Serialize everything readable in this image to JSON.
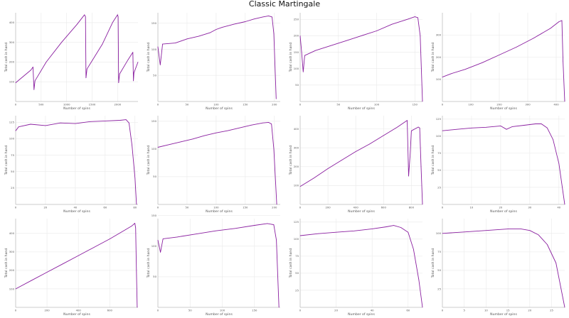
{
  "title": "Classic Martingale",
  "colors": {
    "line": "#8a1fa0",
    "grid": "#e9e9e9",
    "axis": "#bbbbbb",
    "text": "#555555"
  },
  "chart_data": [
    {
      "type": "line",
      "xlabel": "Number of spins",
      "ylabel": "Total cash in hand",
      "xlim": [
        0,
        2400
      ],
      "ylim": [
        0,
        450
      ],
      "xticks": [
        0,
        500,
        1000,
        1500,
        2000
      ],
      "yticks": [
        100,
        200,
        300,
        400
      ],
      "grid": true,
      "series": [
        {
          "values": [
            [
              0,
              95
            ],
            [
              300,
              160
            ],
            [
              340,
              175
            ],
            [
              360,
              60
            ],
            [
              380,
              105
            ],
            [
              600,
              200
            ],
            [
              900,
              300
            ],
            [
              1200,
              390
            ],
            [
              1350,
              440
            ],
            [
              1370,
              430
            ],
            [
              1380,
              120
            ],
            [
              1400,
              165
            ],
            [
              1700,
              290
            ],
            [
              1900,
              400
            ],
            [
              2000,
              440
            ],
            [
              2010,
              430
            ],
            [
              2020,
              95
            ],
            [
              2040,
              140
            ],
            [
              2200,
              210
            ],
            [
              2300,
              250
            ],
            [
              2310,
              105
            ],
            [
              2320,
              145
            ],
            [
              2400,
              200
            ]
          ]
        }
      ]
    },
    {
      "type": "line",
      "xlabel": "Number of spins",
      "ylabel": "Total cash in hand",
      "xlim": [
        0,
        210
      ],
      "ylim": [
        0,
        170
      ],
      "xticks": [
        0,
        50,
        100,
        150,
        200
      ],
      "yticks": [
        50,
        100,
        150
      ],
      "grid": true,
      "series": [
        {
          "values": [
            [
              0,
              105
            ],
            [
              4,
              70
            ],
            [
              8,
              110
            ],
            [
              30,
              112
            ],
            [
              50,
              120
            ],
            [
              70,
              125
            ],
            [
              90,
              132
            ],
            [
              100,
              138
            ],
            [
              110,
              142
            ],
            [
              130,
              148
            ],
            [
              150,
              153
            ],
            [
              165,
              158
            ],
            [
              180,
              162
            ],
            [
              190,
              164
            ],
            [
              196,
              162
            ],
            [
              199,
              130
            ],
            [
              203,
              5
            ]
          ]
        }
      ]
    },
    {
      "type": "line",
      "xlabel": "Number of spins",
      "ylabel": "Total cash in hand",
      "xlim": [
        0,
        160
      ],
      "ylim": [
        0,
        270
      ],
      "xticks": [
        0,
        50,
        100,
        150
      ],
      "yticks": [
        50,
        100,
        150,
        200,
        250
      ],
      "grid": true,
      "series": [
        {
          "values": [
            [
              0,
              200
            ],
            [
              2,
              150
            ],
            [
              4,
              90
            ],
            [
              6,
              140
            ],
            [
              20,
              155
            ],
            [
              40,
              170
            ],
            [
              60,
              185
            ],
            [
              80,
              200
            ],
            [
              100,
              215
            ],
            [
              120,
              235
            ],
            [
              140,
              250
            ],
            [
              150,
              258
            ],
            [
              154,
              255
            ],
            [
              157,
              200
            ],
            [
              160,
              0
            ]
          ]
        }
      ]
    },
    {
      "type": "line",
      "xlabel": "Number of spins",
      "ylabel": "Total cash in hand",
      "xlim": [
        0,
        430
      ],
      "ylim": [
        0,
        400
      ],
      "xticks": [
        0,
        100,
        200,
        300,
        400
      ],
      "yticks": [
        100,
        200,
        300
      ],
      "grid": true,
      "series": [
        {
          "values": [
            [
              0,
              110
            ],
            [
              30,
              125
            ],
            [
              80,
              145
            ],
            [
              140,
              175
            ],
            [
              200,
              210
            ],
            [
              260,
              245
            ],
            [
              320,
              285
            ],
            [
              380,
              330
            ],
            [
              410,
              360
            ],
            [
              420,
              365
            ],
            [
              424,
              180
            ],
            [
              430,
              0
            ]
          ]
        }
      ]
    },
    {
      "type": "line",
      "xlabel": "Number of spins",
      "ylabel": "Total cash in hand",
      "xlim": [
        0,
        82
      ],
      "ylim": [
        0,
        135
      ],
      "xticks": [
        0,
        20,
        40,
        60,
        80
      ],
      "yticks": [
        25,
        50,
        75,
        100,
        125
      ],
      "grid": true,
      "series": [
        {
          "values": [
            [
              0,
              112
            ],
            [
              2,
              118
            ],
            [
              10,
              122
            ],
            [
              20,
              120
            ],
            [
              30,
              124
            ],
            [
              40,
              123
            ],
            [
              50,
              126
            ],
            [
              60,
              127
            ],
            [
              70,
              128
            ],
            [
              74,
              129
            ],
            [
              76,
              124
            ],
            [
              78,
              90
            ],
            [
              80,
              40
            ],
            [
              81,
              0
            ]
          ]
        }
      ]
    },
    {
      "type": "line",
      "xlabel": "Number of spins",
      "ylabel": "Total cash in hand",
      "xlim": [
        0,
        210
      ],
      "ylim": [
        0,
        160
      ],
      "xticks": [
        0,
        50,
        100,
        150,
        200
      ],
      "yticks": [
        50,
        100,
        150
      ],
      "grid": true,
      "series": [
        {
          "values": [
            [
              0,
              103
            ],
            [
              20,
              108
            ],
            [
              40,
              113
            ],
            [
              60,
              118
            ],
            [
              80,
              124
            ],
            [
              100,
              129
            ],
            [
              120,
              133
            ],
            [
              140,
              138
            ],
            [
              160,
              143
            ],
            [
              180,
              147
            ],
            [
              190,
              148
            ],
            [
              195,
              145
            ],
            [
              199,
              100
            ],
            [
              204,
              0
            ]
          ]
        }
      ]
    },
    {
      "type": "line",
      "xlabel": "Number of spins",
      "ylabel": "Total cash in hand",
      "xlim": [
        0,
        880
      ],
      "ylim": [
        0,
        470
      ],
      "xticks": [
        0,
        200,
        400,
        600,
        800
      ],
      "yticks": [
        100,
        200,
        300,
        400
      ],
      "grid": true,
      "series": [
        {
          "values": [
            [
              0,
              95
            ],
            [
              100,
              140
            ],
            [
              200,
              190
            ],
            [
              300,
              235
            ],
            [
              400,
              280
            ],
            [
              500,
              320
            ],
            [
              600,
              365
            ],
            [
              700,
              410
            ],
            [
              770,
              445
            ],
            [
              780,
              150
            ],
            [
              790,
              250
            ],
            [
              800,
              390
            ],
            [
              850,
              410
            ],
            [
              860,
              405
            ],
            [
              870,
              200
            ],
            [
              880,
              0
            ]
          ]
        }
      ]
    },
    {
      "type": "line",
      "xlabel": "Number of spins",
      "ylabel": "Total cash in hand",
      "xlim": [
        0,
        42
      ],
      "ylim": [
        0,
        130
      ],
      "xticks": [
        0,
        10,
        20,
        30,
        40
      ],
      "yticks": [
        25,
        50,
        75,
        100,
        125
      ],
      "grid": true,
      "series": [
        {
          "values": [
            [
              0,
              108
            ],
            [
              5,
              110
            ],
            [
              10,
              112
            ],
            [
              15,
              113
            ],
            [
              20,
              115
            ],
            [
              22,
              110
            ],
            [
              24,
              114
            ],
            [
              28,
              116
            ],
            [
              32,
              118
            ],
            [
              34,
              118
            ],
            [
              36,
              112
            ],
            [
              38,
              95
            ],
            [
              40,
              60
            ],
            [
              42,
              0
            ]
          ]
        }
      ]
    },
    {
      "type": "line",
      "xlabel": "Number of spins",
      "ylabel": "Total cash in hand",
      "xlim": [
        0,
        780
      ],
      "ylim": [
        0,
        480
      ],
      "xticks": [
        0,
        200,
        400,
        600
      ],
      "yticks": [
        100,
        200,
        300,
        400
      ],
      "grid": true,
      "series": [
        {
          "values": [
            [
              0,
              100
            ],
            [
              100,
              145
            ],
            [
              200,
              190
            ],
            [
              300,
              235
            ],
            [
              400,
              280
            ],
            [
              500,
              325
            ],
            [
              600,
              370
            ],
            [
              700,
              420
            ],
            [
              740,
              440
            ],
            [
              760,
              455
            ],
            [
              765,
              430
            ],
            [
              770,
              200
            ],
            [
              775,
              0
            ]
          ]
        }
      ]
    },
    {
      "type": "line",
      "xlabel": "Number of spins",
      "ylabel": "Total cash in hand",
      "xlim": [
        0,
        190
      ],
      "ylim": [
        0,
        145
      ],
      "xticks": [
        0,
        50,
        100,
        150
      ],
      "yticks": [
        50,
        100,
        150
      ],
      "grid": true,
      "series": [
        {
          "values": [
            [
              0,
              110
            ],
            [
              4,
              90
            ],
            [
              8,
              112
            ],
            [
              30,
              115
            ],
            [
              60,
              120
            ],
            [
              90,
              125
            ],
            [
              120,
              129
            ],
            [
              150,
              134
            ],
            [
              170,
              137
            ],
            [
              180,
              135
            ],
            [
              184,
              110
            ],
            [
              188,
              0
            ]
          ]
        }
      ]
    },
    {
      "type": "line",
      "xlabel": "Number of spins",
      "ylabel": "Total cash in hand",
      "xlim": [
        0,
        68
      ],
      "ylim": [
        0,
        130
      ],
      "xticks": [
        0,
        20,
        40,
        60
      ],
      "yticks": [
        25,
        50,
        75,
        100,
        125
      ],
      "grid": true,
      "series": [
        {
          "values": [
            [
              0,
              105
            ],
            [
              10,
              108
            ],
            [
              20,
              110
            ],
            [
              30,
              112
            ],
            [
              40,
              115
            ],
            [
              48,
              118
            ],
            [
              52,
              120
            ],
            [
              56,
              117
            ],
            [
              60,
              110
            ],
            [
              63,
              85
            ],
            [
              66,
              40
            ],
            [
              68,
              0
            ]
          ]
        }
      ]
    },
    {
      "type": "line",
      "xlabel": "Number of spins",
      "ylabel": "Total cash in hand",
      "xlim": [
        0,
        28
      ],
      "ylim": [
        0,
        120
      ],
      "xticks": [
        0,
        5,
        10,
        15,
        20,
        25
      ],
      "yticks": [
        25,
        50,
        75,
        100
      ],
      "grid": true,
      "series": [
        {
          "values": [
            [
              0,
              100
            ],
            [
              5,
              102
            ],
            [
              10,
              104
            ],
            [
              15,
              106
            ],
            [
              18,
              106
            ],
            [
              20,
              104
            ],
            [
              22,
              98
            ],
            [
              24,
              85
            ],
            [
              26,
              60
            ],
            [
              28,
              0
            ]
          ]
        }
      ]
    }
  ]
}
